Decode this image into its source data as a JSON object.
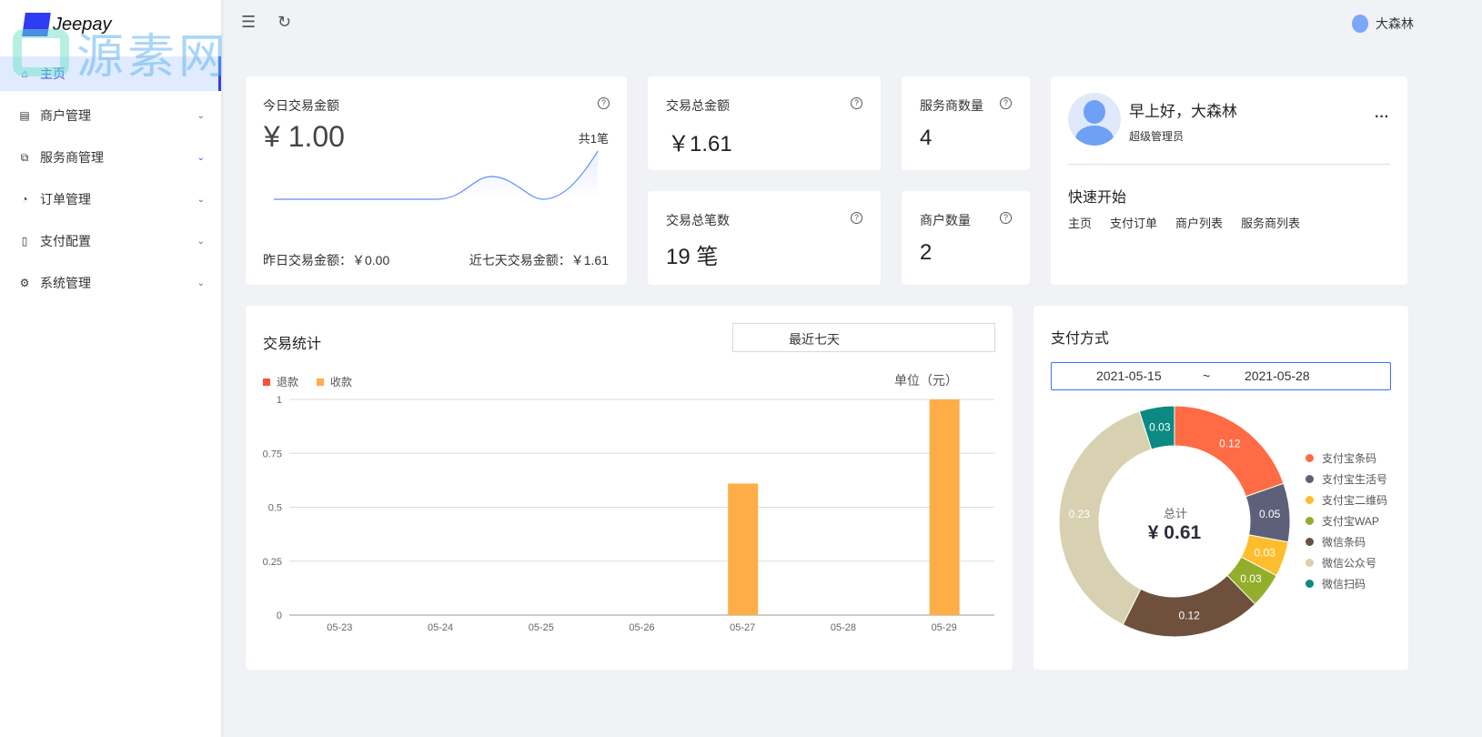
{
  "brand": {
    "name": "Jeepay",
    "watermark": "源素网"
  },
  "sidebar": {
    "items": [
      {
        "label": "主页",
        "icon": "home-icon",
        "active": true
      },
      {
        "label": "商户管理",
        "icon": "shop-icon"
      },
      {
        "label": "服务商管理",
        "icon": "copy-icon"
      },
      {
        "label": "订单管理",
        "icon": "order-icon"
      },
      {
        "label": "支付配置",
        "icon": "file-icon"
      },
      {
        "label": "系统管理",
        "icon": "gear-icon"
      }
    ]
  },
  "topbar": {
    "user": "大森林"
  },
  "today": {
    "title": "今日交易金额",
    "amount": "¥ 1.00",
    "count": "共1笔",
    "yesterday": "昨日交易金额：￥0.00",
    "week": "近七天交易金额：￥1.61"
  },
  "stats": [
    {
      "title": "交易总金额",
      "value": "￥1.61"
    },
    {
      "title": "服务商数量",
      "value": "4"
    },
    {
      "title": "交易总笔数",
      "value": "19 笔"
    },
    {
      "title": "商户数量",
      "value": "2"
    }
  ],
  "profile": {
    "greeting": "早上好，大森林",
    "role": "超级管理员",
    "more": "···",
    "quick_title": "快速开始",
    "links": [
      "主页",
      "支付订单",
      "商户列表",
      "服务商列表"
    ]
  },
  "trade": {
    "title": "交易统计",
    "range": "最近七天",
    "unit": "单位（元）"
  },
  "pay": {
    "title": "支付方式",
    "start": "2021-05-15",
    "sep": "~",
    "end": "2021-05-28",
    "total_label": "总计",
    "total": "¥ 0.61"
  },
  "chart_data": [
    {
      "type": "bar",
      "title": "交易统计",
      "ylabel": "单位（元）",
      "ylim": [
        0,
        1
      ],
      "yticks": [
        "0",
        "0.25",
        "0.5",
        "0.75",
        "1"
      ],
      "categories": [
        "05-23",
        "05-24",
        "05-25",
        "05-26",
        "05-27",
        "05-28",
        "05-29"
      ],
      "series": [
        {
          "name": "退款",
          "color": "#f5533d",
          "values": [
            0,
            0,
            0,
            0,
            0,
            0,
            0
          ]
        },
        {
          "name": "收款",
          "color": "#ffad47",
          "values": [
            0,
            0,
            0,
            0,
            0.61,
            0,
            1
          ]
        }
      ],
      "legend": "top-left",
      "grid": true
    },
    {
      "type": "pie",
      "title": "支付方式",
      "donut": true,
      "slices": [
        {
          "name": "支付宝条码",
          "value": 0.12,
          "color": "#ff6b44"
        },
        {
          "name": "支付宝生活号",
          "value": 0.05,
          "color": "#5e6079"
        },
        {
          "name": "支付宝二维码",
          "value": 0.03,
          "color": "#fdbd2d"
        },
        {
          "name": "支付宝WAP",
          "value": 0.03,
          "color": "#93ae2b"
        },
        {
          "name": "微信条码",
          "value": 0.12,
          "color": "#6e503c"
        },
        {
          "name": "微信公众号",
          "value": 0.23,
          "color": "#d7d1b1"
        },
        {
          "name": "微信扫码",
          "value": 0.03,
          "color": "#0b8982"
        }
      ],
      "legend": "right"
    }
  ]
}
